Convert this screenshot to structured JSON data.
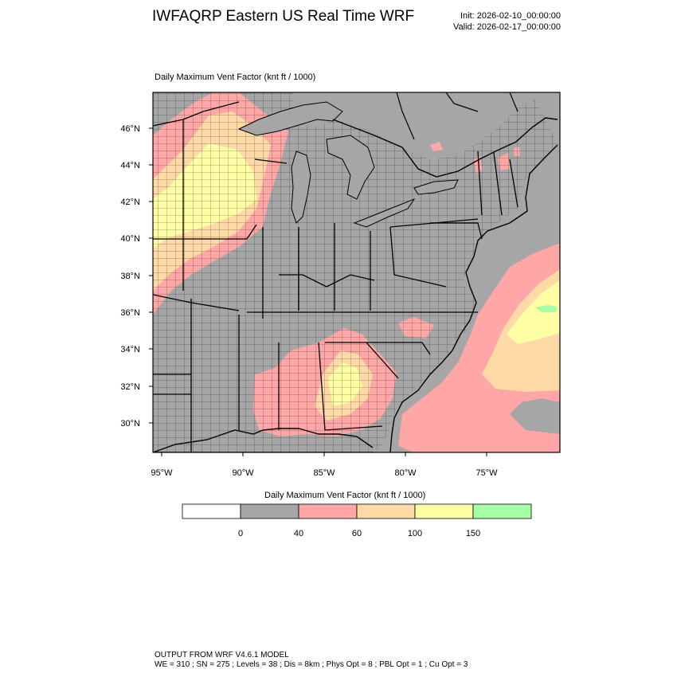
{
  "header": {
    "title": "IWFAQRP Eastern US Real Time WRF",
    "init": "Init: 2026-02-10_00:00:00",
    "valid": "Valid: 2026-02-17_00:00:00"
  },
  "map": {
    "subtitle": "Daily Maximum Vent Factor   (knt ft / 1000)",
    "lat_ticks": [
      "46°N",
      "44°N",
      "42°N",
      "40°N",
      "38°N",
      "36°N",
      "34°N",
      "32°N",
      "30°N"
    ],
    "lon_ticks": [
      "95°W",
      "90°W",
      "85°W",
      "80°W",
      "75°W"
    ],
    "colors": {
      "bin_0_40": "#a6a6a6",
      "bin_40_60": "#ffa6a6",
      "bin_60_100": "#ffd9a6",
      "bin_100_150": "#ffffa6",
      "bin_150_plus": "#a6ffa6",
      "below_0": "#ffffff",
      "boundary": "#000000"
    }
  },
  "legend": {
    "title": "Daily Maximum Vent Factor   (knt ft / 1000)",
    "bins": [
      {
        "color": "#ffffff"
      },
      {
        "color": "#a6a6a6"
      },
      {
        "color": "#ffa6a6"
      },
      {
        "color": "#ffd9a6"
      },
      {
        "color": "#ffffa6"
      },
      {
        "color": "#a6ffa6"
      }
    ],
    "labels": [
      "0",
      "40",
      "60",
      "100",
      "150"
    ]
  },
  "footer": {
    "line1": "OUTPUT FROM WRF V4.6.1 MODEL",
    "line2": "WE = 310 ; SN = 275 ; Levels = 38 ; Dis = 8km ; Phys Opt = 8 ; PBL Opt = 1 ; Cu Opt = 3"
  }
}
